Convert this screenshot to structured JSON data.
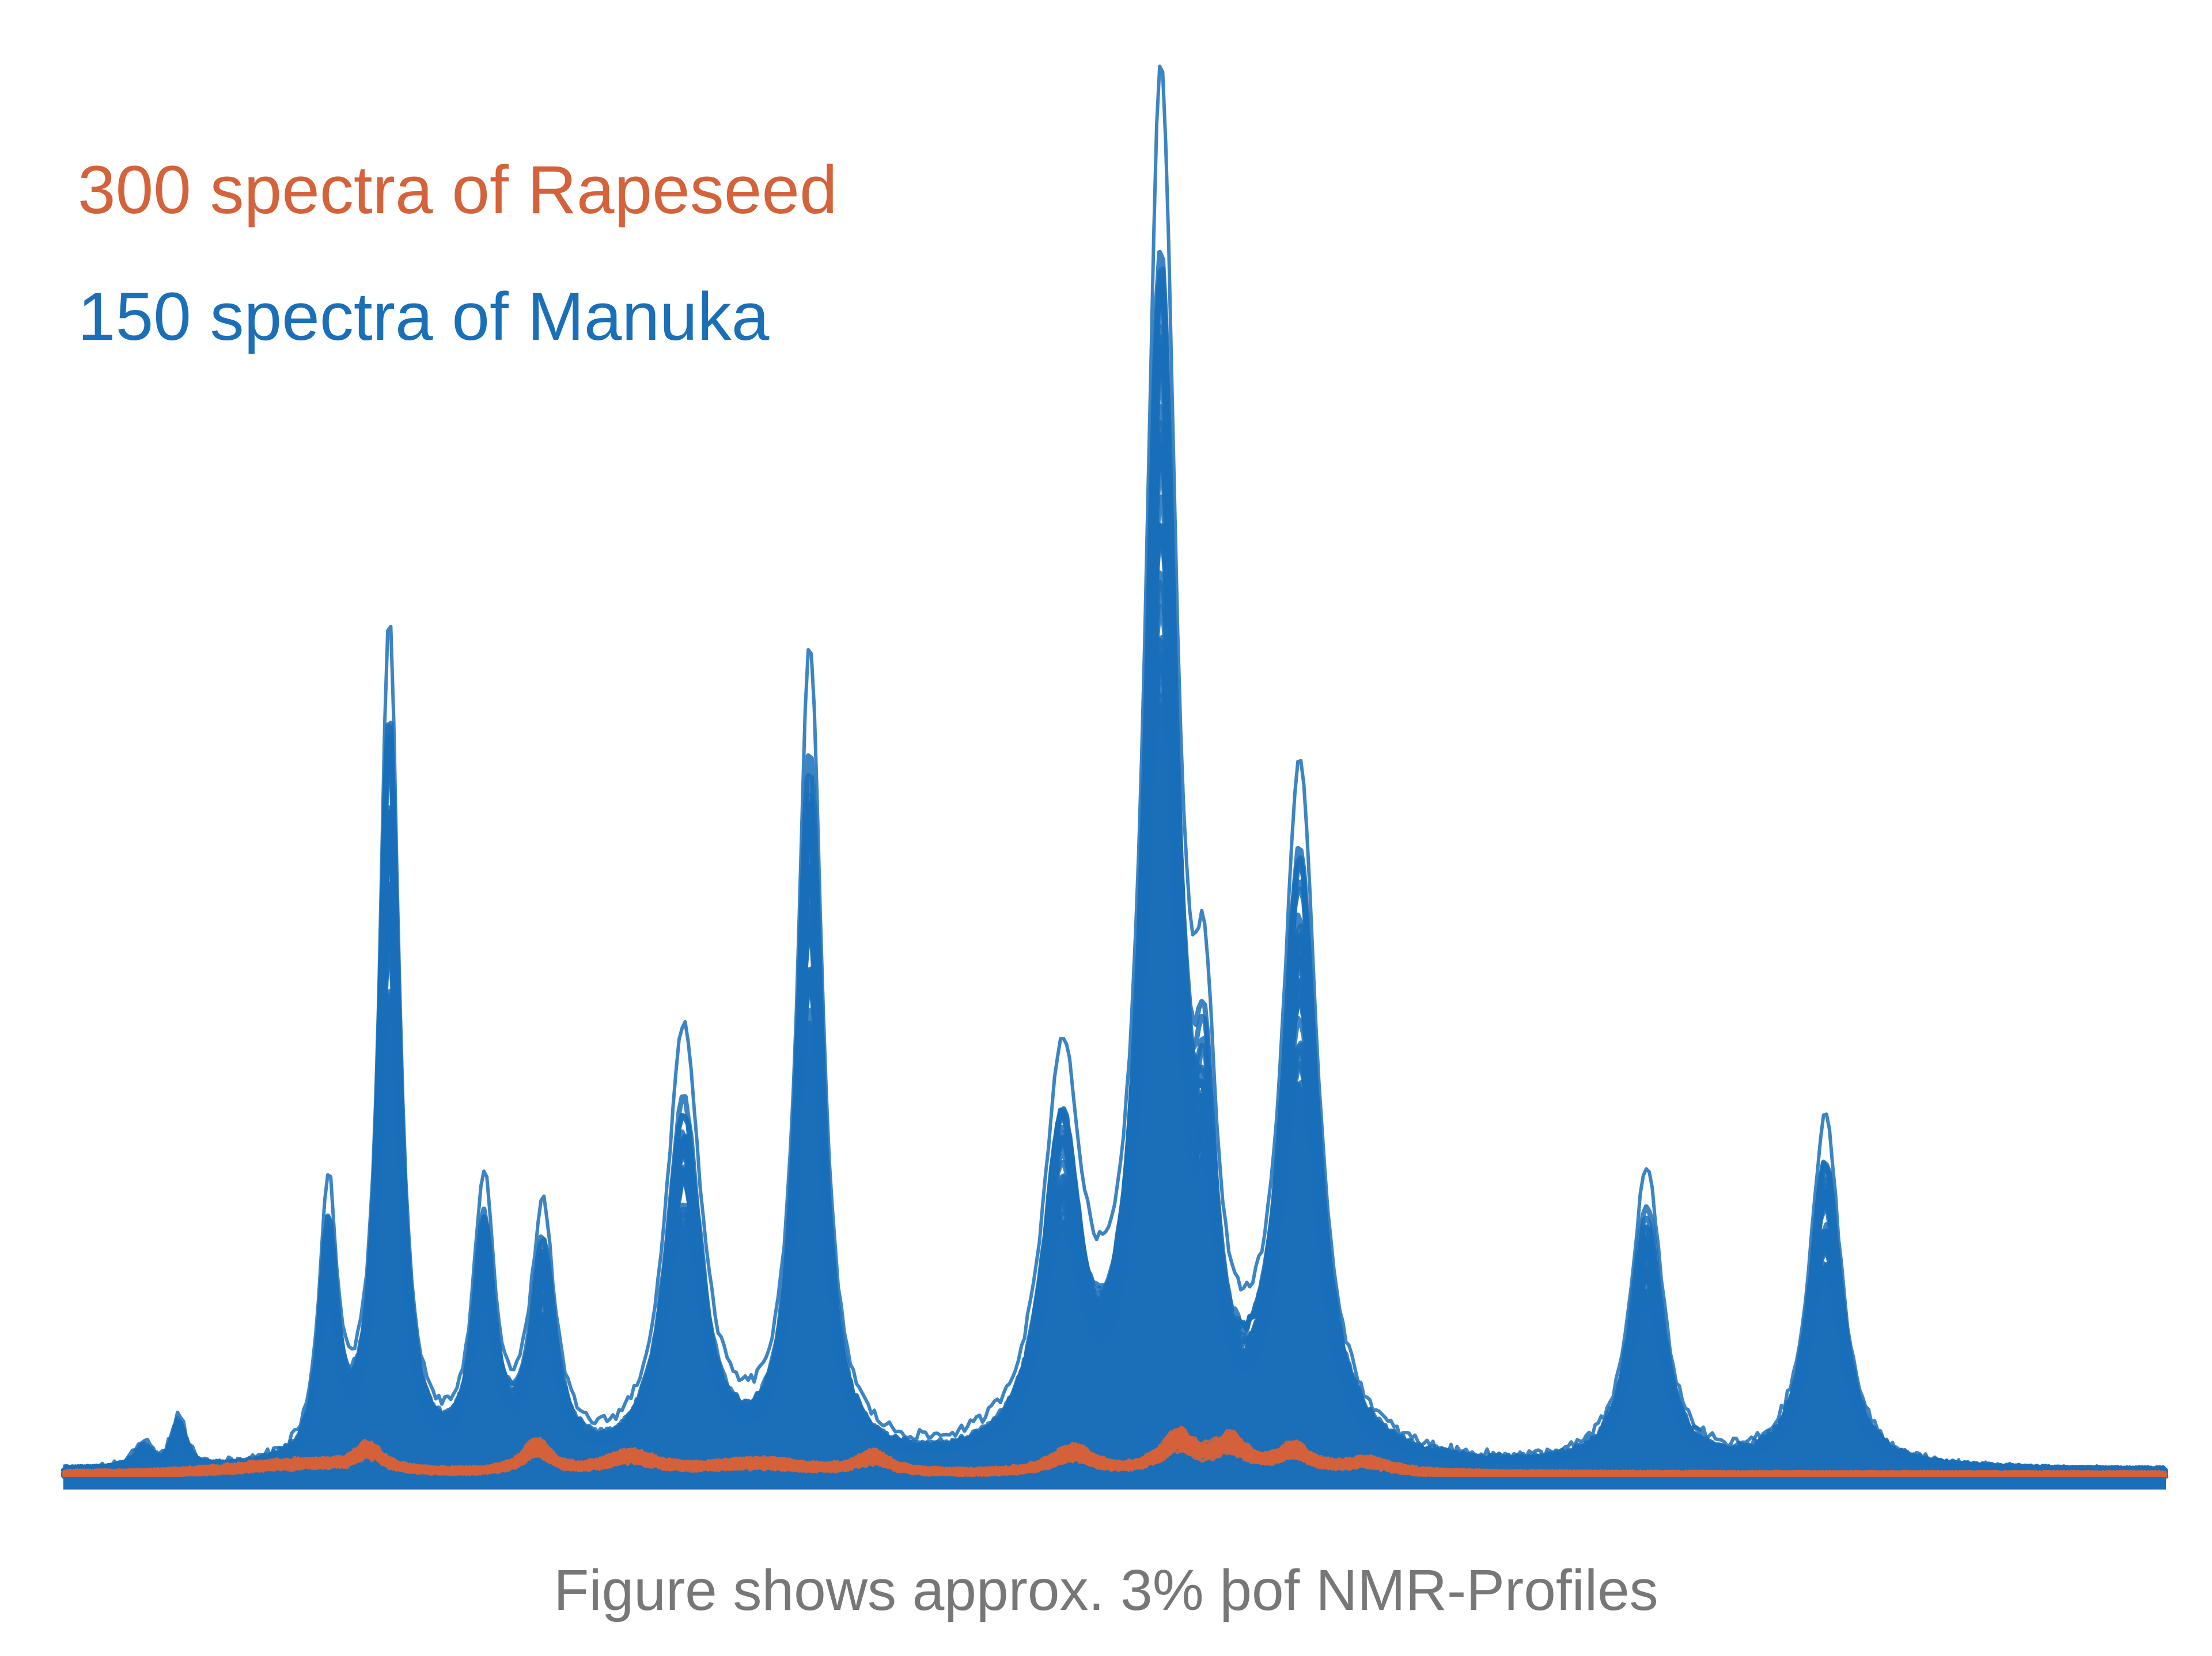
{
  "chart_data": {
    "type": "line",
    "title": "",
    "xlabel": "",
    "ylabel": "",
    "grid": false,
    "legend_position": "top-left",
    "caption": "Figure shows approx. 3% þof NMR-Profiles",
    "x_range": [
      0,
      100
    ],
    "ylim": [
      0,
      100
    ],
    "series": [
      {
        "name": "300 spectra of Rapeseed",
        "color": "#d4623a",
        "peaks": [
          {
            "x": 11.0,
            "y": 1.0,
            "w": 3.5
          },
          {
            "x": 14.5,
            "y": 2.0,
            "w": 0.8
          },
          {
            "x": 22.5,
            "y": 2.4,
            "w": 0.8
          },
          {
            "x": 27.0,
            "y": 1.5,
            "w": 1.5
          },
          {
            "x": 33.0,
            "y": 1.0,
            "w": 3.0
          },
          {
            "x": 38.5,
            "y": 1.5,
            "w": 0.9
          },
          {
            "x": 48.0,
            "y": 2.0,
            "w": 1.2
          },
          {
            "x": 53.0,
            "y": 3.0,
            "w": 1.0
          },
          {
            "x": 55.5,
            "y": 2.5,
            "w": 1.0
          },
          {
            "x": 58.5,
            "y": 1.9,
            "w": 1.0
          },
          {
            "x": 62.0,
            "y": 1.0,
            "w": 1.5
          }
        ]
      },
      {
        "name": "150 spectra of Manuka",
        "color": "#1a6fb8",
        "peaks": [
          {
            "x": 3.8,
            "y": 2.0,
            "w": 0.5
          },
          {
            "x": 5.5,
            "y": 4.0,
            "w": 0.4
          },
          {
            "x": 12.6,
            "y": 20.0,
            "w": 0.5
          },
          {
            "x": 15.5,
            "y": 62.0,
            "w": 0.55
          },
          {
            "x": 20.0,
            "y": 20.0,
            "w": 0.6
          },
          {
            "x": 22.8,
            "y": 18.0,
            "w": 0.7
          },
          {
            "x": 29.5,
            "y": 32.0,
            "w": 1.0
          },
          {
            "x": 35.5,
            "y": 60.0,
            "w": 0.7
          },
          {
            "x": 47.5,
            "y": 28.0,
            "w": 1.1
          },
          {
            "x": 52.2,
            "y": 100.0,
            "w": 0.9
          },
          {
            "x": 54.3,
            "y": 22.0,
            "w": 0.6
          },
          {
            "x": 58.8,
            "y": 50.0,
            "w": 1.0
          },
          {
            "x": 75.3,
            "y": 22.0,
            "w": 0.9
          },
          {
            "x": 83.8,
            "y": 26.0,
            "w": 0.9
          }
        ]
      }
    ]
  }
}
